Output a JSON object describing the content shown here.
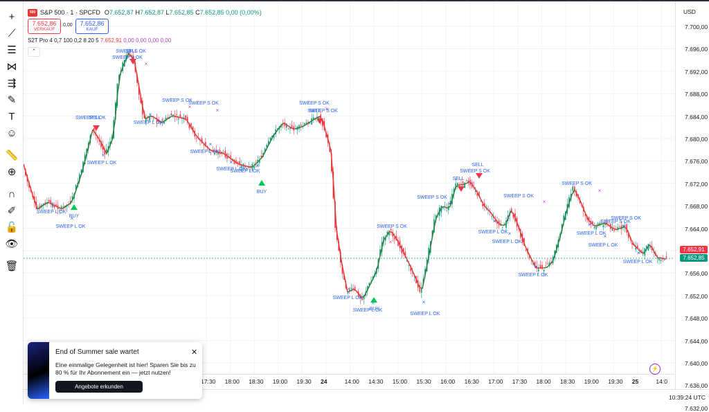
{
  "header": {
    "symbol": "S&P 500 · 1 · SPCFD",
    "logo_text": "500",
    "open": "7.652,87",
    "high": "7.652,87",
    "low": "7.652,85",
    "close": "7.652,85",
    "change": "0,00 (0,00%)",
    "o_label": "O",
    "h_label": "H",
    "l_label": "L",
    "c_label": "C"
  },
  "trade": {
    "sell_price": "7.652,86",
    "sell_label": "VERKAUF",
    "spread": "0,00",
    "buy_price": "7.652,86",
    "buy_label": "KAUF"
  },
  "indicator": {
    "name": "S2T Pro 4 0,7 100 0,2 8 20 5",
    "value1": "7.652,91",
    "values_rest": "0,00  0,00  0,00  0,00"
  },
  "price_axis": {
    "currency": "USD",
    "ticks": [
      "7.700,00",
      "7.696,00",
      "7.692,00",
      "7.688,00",
      "7.684,00",
      "7.680,00",
      "7.676,00",
      "7.672,00",
      "7.668,00",
      "7.664,00",
      "7.660,00",
      "7.656,00",
      "7.652,00",
      "7.648,00",
      "7.644,00",
      "7.640,00",
      "7.636,00",
      "7.632,00"
    ],
    "tag_red": "7.652,91",
    "tag_green": "7.652,85"
  },
  "time_axis": {
    "labels": [
      "17:30",
      "18:00",
      "18:30",
      "19:00",
      "19:30",
      "24",
      "14:00",
      "14:30",
      "15:00",
      "15:30",
      "16:00",
      "16:30",
      "17:00",
      "17:30",
      "18:00",
      "18:30",
      "19:00",
      "19:30",
      "25",
      "14:0"
    ]
  },
  "chart_annotations": [
    {
      "text": "SWEEP S OK",
      "kind": "sweep"
    },
    {
      "text": "SELL",
      "kind": "signal"
    },
    {
      "text": "SWEEP L OK",
      "kind": "sweep"
    },
    {
      "text": "BUY",
      "kind": "signal"
    }
  ],
  "colors": {
    "up": "#089981",
    "down": "#f23645",
    "sweep_label": "#2962ff",
    "sweep_x": "#ab47bc",
    "line_up": "#2e7d32",
    "line_down": "#e53935"
  },
  "toast": {
    "title": "End of Summer sale wartet",
    "text": "Eine einmalige Gelegenheit ist hier! Sparen Sie bis zu 80 % für Ihr Abonnement ein — jetzt nutzen!",
    "button": "Angebote erkunden",
    "close": "✕"
  },
  "footer": {
    "clock": "10:39:24 UTC"
  },
  "toolbar_icons": [
    "crosshair-icon",
    "trendline-icon",
    "fib-icon",
    "pattern-icon",
    "measure-icon",
    "brush-icon",
    "text-icon",
    "emoji-icon",
    "ruler-icon",
    "zoom-icon",
    "magnet-icon",
    "lock-drawing-icon",
    "lock-icon",
    "eye-icon",
    "trash-icon"
  ]
}
